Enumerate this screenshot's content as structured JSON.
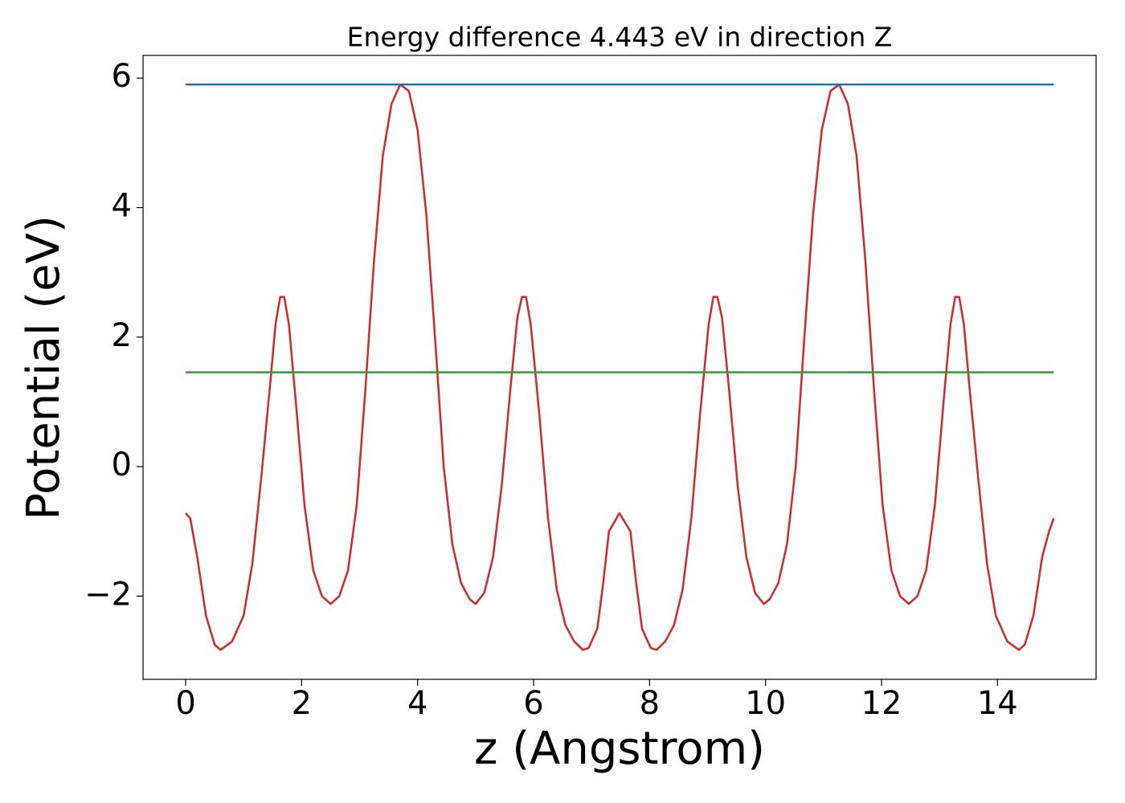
{
  "chart_data": {
    "type": "line",
    "title": "Energy difference 4.443 eV in direction Z",
    "xlabel": "z (Angstrom)",
    "ylabel": "Potential (eV)",
    "xlim": [
      -0.735,
      15.7
    ],
    "ylim": [
      -3.285,
      6.35
    ],
    "xticks": [
      0,
      2,
      4,
      6,
      8,
      10,
      12,
      14
    ],
    "yticks": [
      {
        "value": -2,
        "label": "−2"
      },
      0,
      2,
      4,
      6
    ],
    "series": [
      {
        "color": "#d62728",
        "x": [
          0,
          0.08,
          0.2,
          0.35,
          0.5,
          0.6,
          0.8,
          1.0,
          1.15,
          1.3,
          1.45,
          1.55,
          1.63,
          1.7,
          1.78,
          1.9,
          2.05,
          2.2,
          2.35,
          2.5,
          2.65,
          2.8,
          2.95,
          3.1,
          3.25,
          3.4,
          3.55,
          3.7,
          3.85,
          4.0,
          4.15,
          4.3,
          4.45,
          4.6,
          4.75,
          4.9,
          5.0,
          5.15,
          5.3,
          5.45,
          5.6,
          5.72,
          5.8,
          5.87,
          5.95,
          6.1,
          6.25,
          6.4,
          6.55,
          6.7,
          6.85,
          6.95,
          7.1,
          7.2,
          7.3,
          7.48,
          7.67,
          7.77,
          7.87,
          8.02,
          8.12,
          8.27,
          8.42,
          8.57,
          8.72,
          8.87,
          9.02,
          9.1,
          9.17,
          9.25,
          9.37,
          9.52,
          9.67,
          9.82,
          9.97,
          10.07,
          10.22,
          10.37,
          10.52,
          10.67,
          10.82,
          10.97,
          11.12,
          11.27,
          11.42,
          11.57,
          11.72,
          11.87,
          12.02,
          12.17,
          12.32,
          12.47,
          12.62,
          12.77,
          12.92,
          13.07,
          13.19,
          13.27,
          13.34,
          13.42,
          13.52,
          13.67,
          13.82,
          13.97,
          14.17,
          14.37,
          14.47,
          14.62,
          14.77,
          14.89,
          14.97
        ],
        "values": [
          -0.72,
          -0.8,
          -1.4,
          -2.3,
          -2.75,
          -2.83,
          -2.7,
          -2.3,
          -1.5,
          -0.2,
          1.2,
          2.2,
          2.62,
          2.62,
          2.2,
          1.0,
          -0.6,
          -1.6,
          -2.0,
          -2.12,
          -2.0,
          -1.6,
          -0.6,
          1.2,
          3.2,
          4.8,
          5.6,
          5.9,
          5.8,
          5.2,
          3.9,
          2.0,
          0.0,
          -1.2,
          -1.8,
          -2.05,
          -2.12,
          -1.95,
          -1.4,
          -0.3,
          1.2,
          2.3,
          2.62,
          2.62,
          2.2,
          0.8,
          -0.8,
          -1.9,
          -2.45,
          -2.7,
          -2.83,
          -2.8,
          -2.5,
          -1.8,
          -1.0,
          -0.72,
          -1.0,
          -1.8,
          -2.5,
          -2.8,
          -2.83,
          -2.7,
          -2.45,
          -1.9,
          -0.8,
          0.8,
          2.2,
          2.62,
          2.62,
          2.3,
          1.2,
          -0.3,
          -1.4,
          -1.95,
          -2.12,
          -2.05,
          -1.8,
          -1.2,
          0.0,
          2.0,
          3.9,
          5.2,
          5.8,
          5.9,
          5.6,
          4.8,
          3.2,
          1.2,
          -0.6,
          -1.6,
          -2.0,
          -2.12,
          -2.0,
          -1.6,
          -0.6,
          1.0,
          2.2,
          2.62,
          2.62,
          2.2,
          1.2,
          -0.2,
          -1.5,
          -2.3,
          -2.7,
          -2.83,
          -2.75,
          -2.3,
          -1.4,
          -1.0,
          -0.8
        ]
      },
      {
        "color": "#1f77b4",
        "x": [
          0,
          14.97
        ],
        "values": [
          5.9,
          5.9
        ]
      },
      {
        "color": "#2ca02c",
        "x": [
          0,
          14.97
        ],
        "values": [
          1.457,
          1.457
        ]
      }
    ]
  }
}
